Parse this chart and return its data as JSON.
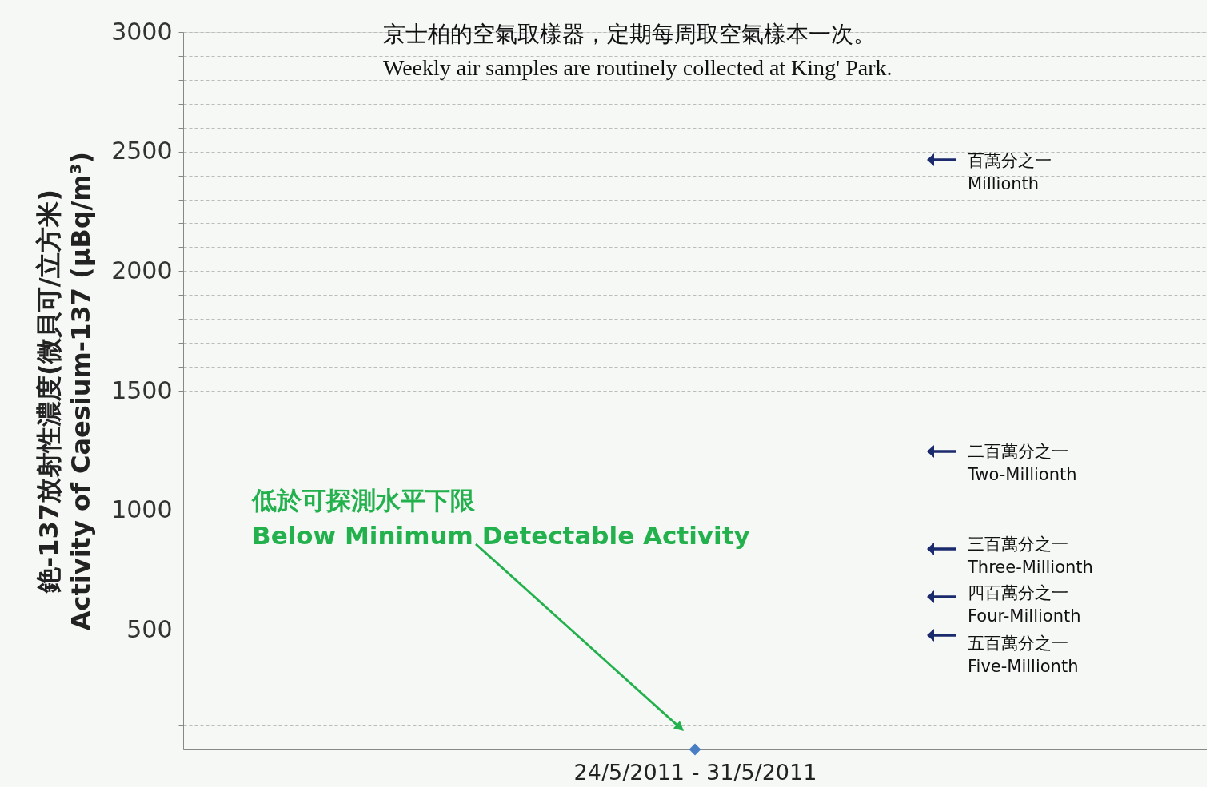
{
  "chart_data": {
    "type": "scatter",
    "ylabel": "銫-137放射性濃度(微貝可/立方米)\nActivity of Caesium-137 (µBq/m³)",
    "categories": [
      "24/5/2011 - 31/5/2011"
    ],
    "series": [
      {
        "color": "#4a7ec4",
        "values": [
          0
        ]
      }
    ],
    "marker": "diamond",
    "ylim": [
      0,
      3000
    ],
    "yticks": [
      {
        "value": 100,
        "label": null
      },
      {
        "value": 200,
        "label": null
      },
      {
        "value": 300,
        "label": null
      },
      {
        "value": 400,
        "label": null
      },
      500,
      {
        "value": 600,
        "label": null
      },
      {
        "value": 700,
        "label": null
      },
      {
        "value": 800,
        "label": null
      },
      {
        "value": 900,
        "label": null
      },
      1000,
      {
        "value": 1100,
        "label": null
      },
      {
        "value": 1200,
        "label": null
      },
      {
        "value": 1300,
        "label": null
      },
      {
        "value": 1400,
        "label": null
      },
      1500,
      {
        "value": 1600,
        "label": null
      },
      {
        "value": 1700,
        "label": null
      },
      {
        "value": 1800,
        "label": null
      },
      {
        "value": 1900,
        "label": null
      },
      2000,
      {
        "value": 2100,
        "label": null
      },
      {
        "value": 2200,
        "label": null
      },
      {
        "value": 2300,
        "label": null
      },
      {
        "value": 2400,
        "label": null
      },
      2500,
      {
        "value": 2600,
        "label": null
      },
      {
        "value": 2700,
        "label": null
      },
      {
        "value": 2800,
        "label": null
      },
      {
        "value": 2900,
        "label": null
      },
      3000
    ],
    "grid": "y",
    "annotations": [
      "京士柏的空氣取樣器，定期每周取空氣樣本一次。",
      "Weekly air samples are routinely collected at King' Park.",
      "低於可探測水平下限\nBelow Minimum Detectable Activity",
      "百萬分之一\nMillionth",
      "二百萬分之一\nTwo-Millionth",
      "三百萬分之一\nThree-Millionth",
      "四百萬分之一\nFour-Millionth",
      "五百萬分之一\nFive-Millionth"
    ]
  }
}
